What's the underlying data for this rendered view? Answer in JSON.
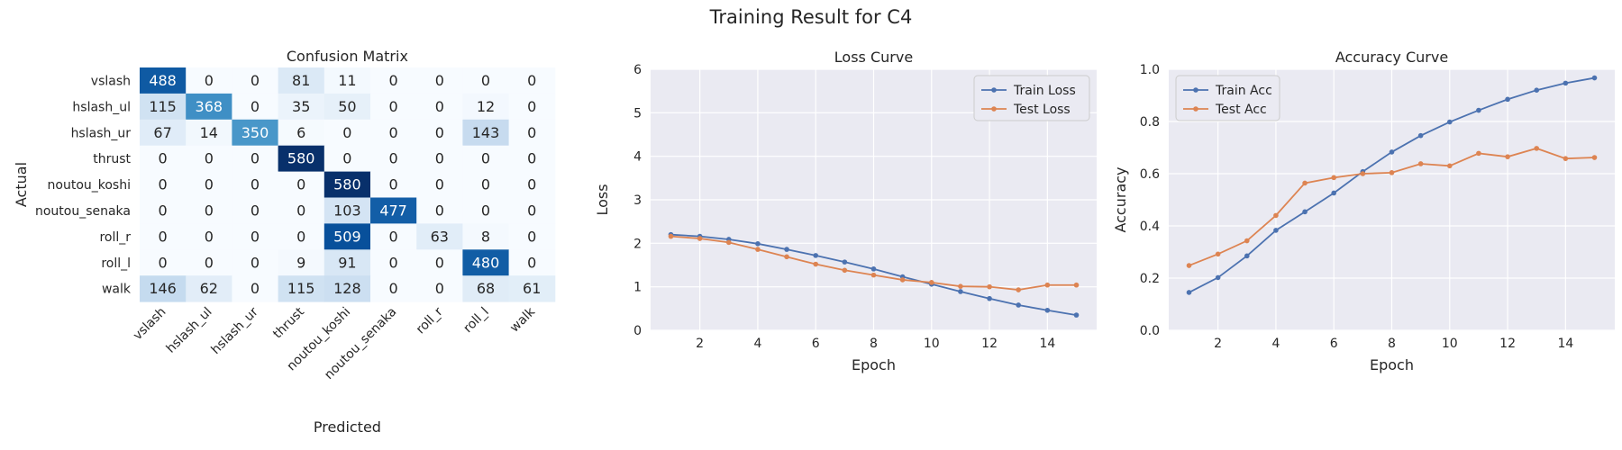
{
  "figure": {
    "title": "Training Result for C4"
  },
  "chart_data": [
    {
      "type": "heatmap",
      "title": "Confusion Matrix",
      "xlabel": "Predicted",
      "ylabel": "Actual",
      "row_labels": [
        "vslash",
        "hslash_ul",
        "hslash_ur",
        "thrust",
        "noutou_koshi",
        "noutou_senaka",
        "roll_r",
        "roll_l",
        "walk"
      ],
      "col_labels": [
        "vslash",
        "hslash_ul",
        "hslash_ur",
        "thrust",
        "noutou_koshi",
        "noutou_senaka",
        "roll_r",
        "roll_l",
        "walk"
      ],
      "values": [
        [
          488,
          0,
          0,
          81,
          11,
          0,
          0,
          0,
          0
        ],
        [
          115,
          368,
          0,
          35,
          50,
          0,
          0,
          12,
          0
        ],
        [
          67,
          14,
          350,
          6,
          0,
          0,
          0,
          143,
          0
        ],
        [
          0,
          0,
          0,
          580,
          0,
          0,
          0,
          0,
          0
        ],
        [
          0,
          0,
          0,
          0,
          580,
          0,
          0,
          0,
          0
        ],
        [
          0,
          0,
          0,
          0,
          103,
          477,
          0,
          0,
          0
        ],
        [
          0,
          0,
          0,
          0,
          509,
          0,
          63,
          8,
          0
        ],
        [
          0,
          0,
          0,
          9,
          91,
          0,
          0,
          480,
          0
        ],
        [
          146,
          62,
          0,
          115,
          128,
          0,
          0,
          68,
          61
        ]
      ],
      "vmin": 0,
      "vmax": 580,
      "colormap": "Blues"
    },
    {
      "type": "line",
      "title": "Loss Curve",
      "xlabel": "Epoch",
      "ylabel": "Loss",
      "xlim": [
        0.3,
        15.7
      ],
      "ylim": [
        0,
        6
      ],
      "xticks": [
        2,
        4,
        6,
        8,
        10,
        12,
        14
      ],
      "yticks": [
        0,
        1,
        2,
        3,
        4,
        5,
        6
      ],
      "x": [
        1,
        2,
        3,
        4,
        5,
        6,
        7,
        8,
        9,
        10,
        11,
        12,
        13,
        14,
        15
      ],
      "grid": true,
      "legend": "top-right",
      "series": [
        {
          "name": "Train Loss",
          "color": "#4c72b0",
          "values": [
            2.2,
            2.16,
            2.09,
            1.99,
            1.86,
            1.72,
            1.57,
            1.41,
            1.23,
            1.06,
            0.89,
            0.73,
            0.58,
            0.46,
            0.35
          ]
        },
        {
          "name": "Test Loss",
          "color": "#dd8452",
          "values": [
            2.16,
            2.11,
            2.02,
            1.86,
            1.69,
            1.52,
            1.38,
            1.27,
            1.16,
            1.1,
            1.01,
            1.0,
            0.93,
            1.04,
            1.04
          ]
        }
      ]
    },
    {
      "type": "line",
      "title": "Accuracy Curve",
      "xlabel": "Epoch",
      "ylabel": "Accuracy",
      "xlim": [
        0.3,
        15.7
      ],
      "ylim": [
        0,
        1
      ],
      "xticks": [
        2,
        4,
        6,
        8,
        10,
        12,
        14
      ],
      "yticks": [
        0,
        0.2,
        0.4,
        0.6,
        0.8,
        1.0
      ],
      "ytick_labels": [
        "0.0",
        "0.2",
        "0.4",
        "0.6",
        "0.8",
        "1.0"
      ],
      "x": [
        1,
        2,
        3,
        4,
        5,
        6,
        7,
        8,
        9,
        10,
        11,
        12,
        13,
        14,
        15
      ],
      "grid": true,
      "legend": "top-left",
      "series": [
        {
          "name": "Train Acc",
          "color": "#4c72b0",
          "values": [
            0.145,
            0.202,
            0.285,
            0.383,
            0.454,
            0.526,
            0.608,
            0.683,
            0.746,
            0.798,
            0.843,
            0.885,
            0.92,
            0.947,
            0.967
          ]
        },
        {
          "name": "Test Acc",
          "color": "#dd8452",
          "values": [
            0.248,
            0.292,
            0.343,
            0.44,
            0.564,
            0.585,
            0.6,
            0.604,
            0.638,
            0.63,
            0.678,
            0.665,
            0.697,
            0.658,
            0.662
          ]
        }
      ]
    }
  ]
}
